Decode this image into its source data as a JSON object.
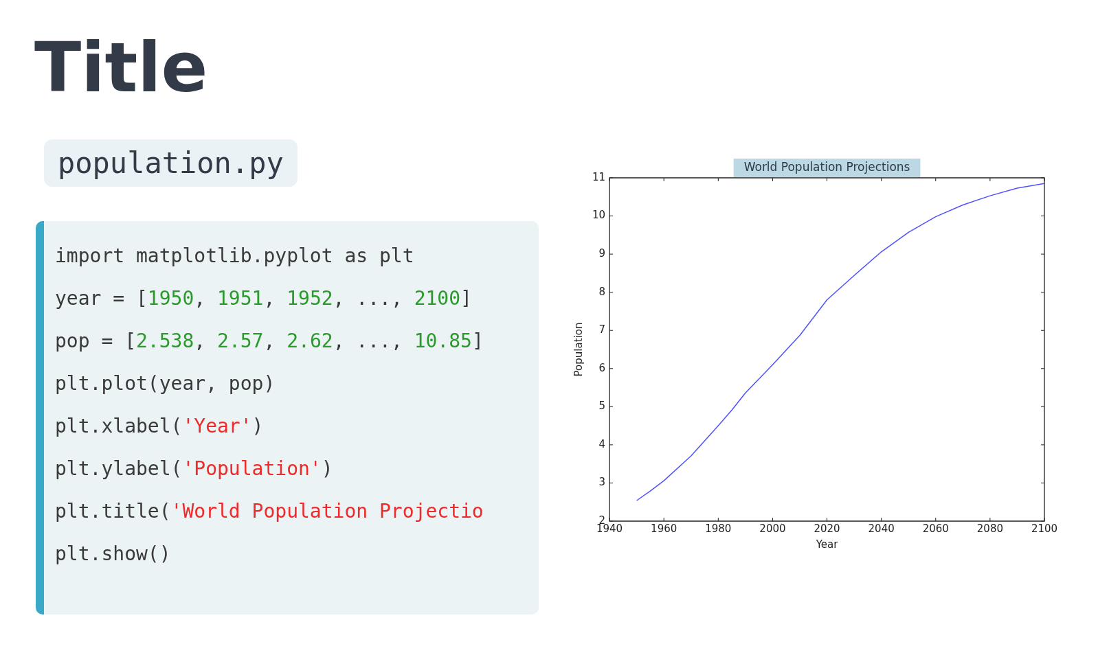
{
  "chart_data": {
    "type": "line",
    "title": "World Population Projections",
    "xlabel": "Year",
    "ylabel": "Population",
    "x": [
      1950,
      1955,
      1960,
      1970,
      1980,
      1985,
      1990,
      2000,
      2010,
      2020,
      2030,
      2040,
      2050,
      2060,
      2070,
      2080,
      2090,
      2100
    ],
    "series": [
      {
        "color": "#5050ff",
        "values": [
          2.54,
          2.79,
          3.06,
          3.71,
          4.5,
          4.91,
          5.36,
          6.1,
          6.87,
          7.8,
          8.44,
          9.06,
          9.57,
          9.98,
          10.29,
          10.53,
          10.73,
          10.85
        ]
      }
    ],
    "xlim": [
      1940,
      2100
    ],
    "xticks": [
      1940,
      1960,
      1980,
      2000,
      2020,
      2040,
      2060,
      2080,
      2100
    ],
    "ylim": [
      2,
      11
    ],
    "yticks": [
      2,
      3,
      4,
      5,
      6,
      7,
      8,
      9,
      10,
      11
    ],
    "marker": "none",
    "legend": false,
    "annotations": [
      "Title",
      "population.py",
      "import matplotlib.pyplot as plt",
      "year = [1950, 1951, 1952, ..., 2100]",
      "pop = [2.538, 2.57, 2.62, ..., 10.85]",
      "plt.plot(year, pop)",
      "plt.xlabel('Year')",
      "plt.ylabel('Population')",
      "plt.title('World Population Projectio",
      "plt.show()"
    ]
  }
}
